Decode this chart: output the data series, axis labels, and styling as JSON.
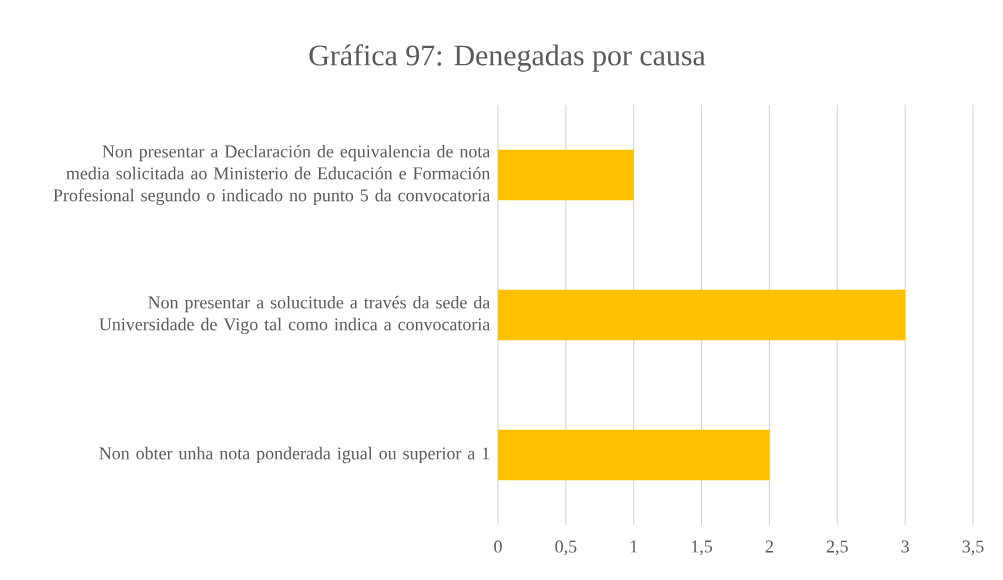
{
  "chart_data": {
    "type": "bar",
    "orientation": "horizontal",
    "title": "Gráfica 97: Denegadas por causa",
    "categories": [
      "Non presentar a Declaración de equivalencia de nota media solicitada ao Ministerio de Educación e Formación Profesional segundo o indicado no punto 5 da convocatoria",
      "Non presentar a solucitude a través da sede da Universidade de Vigo tal como indica a convocatoria",
      "Non obter unha nota ponderada igual ou superior a 1"
    ],
    "values": [
      1,
      3,
      2
    ],
    "color": "#ffc000",
    "xlim": [
      0,
      3.5
    ],
    "xticks": [
      0,
      {
        "value": 0.5,
        "label": "0,5"
      },
      1,
      {
        "value": 1.5,
        "label": "1,5"
      },
      2,
      {
        "value": 2.5,
        "label": "2,5"
      },
      3,
      {
        "value": 3.5,
        "label": "3,5"
      }
    ],
    "grid": "x"
  }
}
